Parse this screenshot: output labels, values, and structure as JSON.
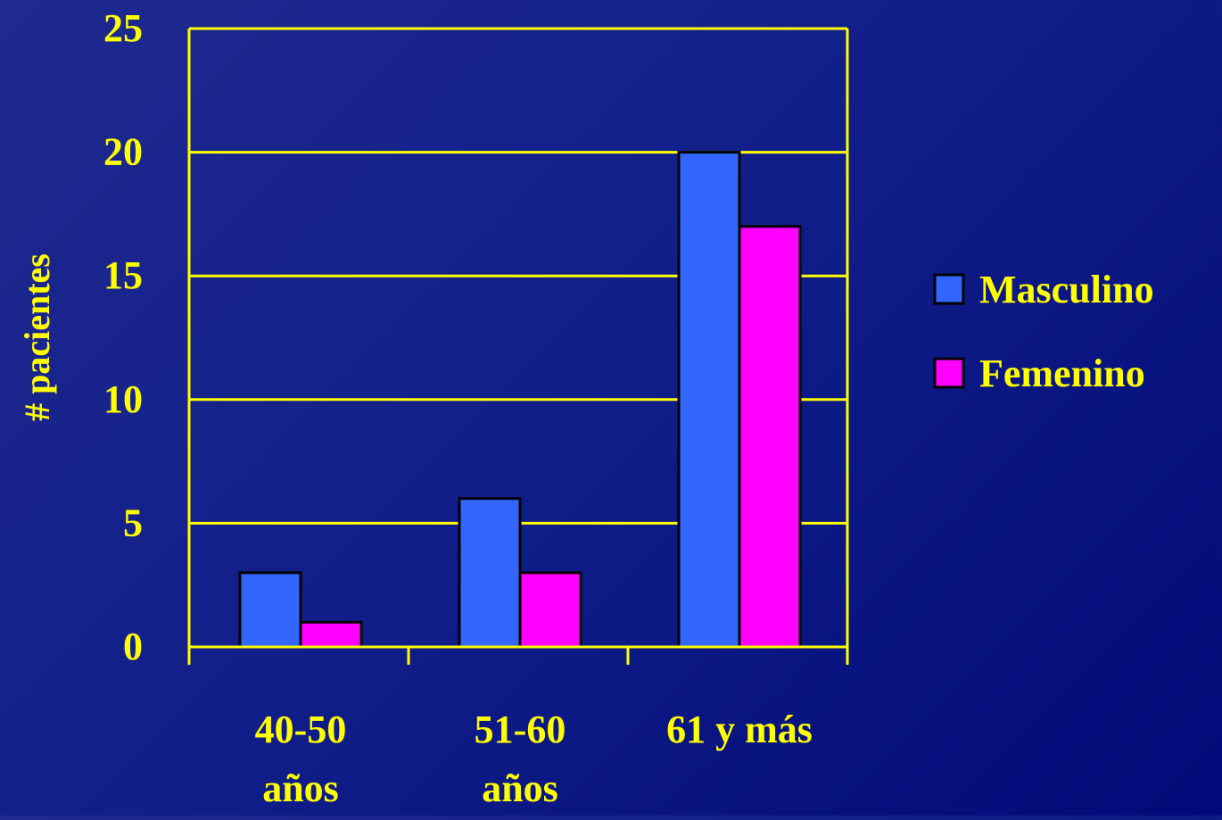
{
  "chart_data": {
    "type": "bar",
    "title": "",
    "xlabel": "",
    "ylabel": "# pacientes",
    "categories": [
      [
        "40-50",
        "años"
      ],
      [
        "51-60",
        "años"
      ],
      [
        "61 y más"
      ]
    ],
    "series": [
      {
        "name": "Masculino",
        "values": [
          3,
          6,
          20
        ],
        "color": "#3366ff"
      },
      {
        "name": "Femenino",
        "values": [
          1,
          3,
          17
        ],
        "color": "#ff00ff"
      }
    ],
    "ylim": [
      0,
      25
    ],
    "yticks": [
      0,
      5,
      10,
      15,
      20,
      25
    ],
    "grid": true,
    "legend_position": "right",
    "colors": {
      "text": "#ffff00",
      "axis": "#ffff00",
      "gridline": "#ffff00",
      "bar_outline": "#000000"
    }
  }
}
